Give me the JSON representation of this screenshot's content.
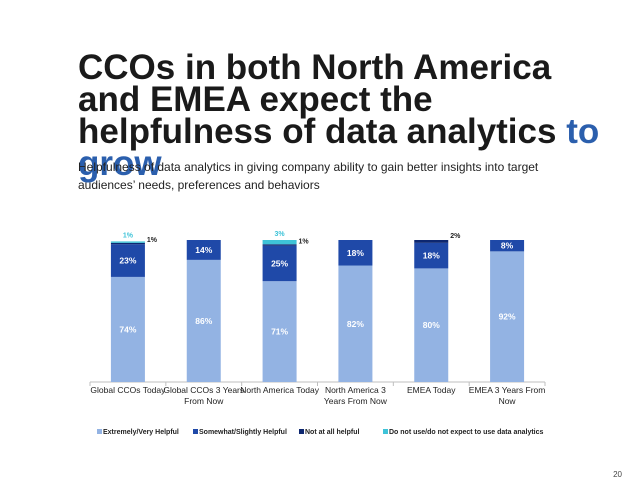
{
  "slide": {
    "title_part1": "CCOs in both North America and EMEA expect the helpfulness of data analytics ",
    "title_accent": "to grow",
    "subtitle": "Helpfulness of data analytics in giving company ability to gain better insights into target audiences’ needs, preferences and behaviors",
    "page_number": "20"
  },
  "colors": {
    "extremely": "#93b3e3",
    "somewhat": "#1f49a8",
    "not_at_all": "#0d2770",
    "do_not_use": "#3ec3d8",
    "title_accent": "#2b5fad"
  },
  "chart_data": {
    "type": "bar",
    "stacked": true,
    "categories": [
      "Global CCOs Today",
      "Global CCOs 3 Years From Now",
      "North America Today",
      "North America 3 Years From Now",
      "EMEA Today",
      "EMEA 3 Years From Now"
    ],
    "category_lines": [
      [
        "Global CCOs Today"
      ],
      [
        "Global CCOs 3 Years",
        "From Now"
      ],
      [
        "North America Today"
      ],
      [
        "North America 3",
        "Years From Now"
      ],
      [
        "EMEA Today"
      ],
      [
        "EMEA 3 Years From",
        "Now"
      ]
    ],
    "series": [
      {
        "name": "Extremely/Very Helpful",
        "color_key": "extremely",
        "values": [
          74,
          86,
          71,
          82,
          80,
          92
        ],
        "labels": [
          "74%",
          "86%",
          "71%",
          "82%",
          "80%",
          "92%"
        ]
      },
      {
        "name": "Somewhat/Slightly Helpful",
        "color_key": "somewhat",
        "values": [
          23,
          14,
          25,
          18,
          18,
          8
        ],
        "labels": [
          "23%",
          "14%",
          "25%",
          "18%",
          "18%",
          "8%"
        ]
      },
      {
        "name": "Not at all helpful",
        "color_key": "not_at_all",
        "values": [
          1,
          0,
          1,
          0,
          2,
          0
        ],
        "labels": [
          "1%",
          "",
          "1%",
          "",
          "2%",
          ""
        ]
      },
      {
        "name": "Do not use/do not expect to use data analytics",
        "color_key": "do_not_use",
        "values": [
          1,
          0,
          3,
          0,
          0,
          0
        ],
        "labels": [
          "1%",
          "",
          "3%",
          "",
          "",
          ""
        ]
      }
    ],
    "ylim": [
      0,
      100
    ],
    "legend_position": "bottom"
  }
}
